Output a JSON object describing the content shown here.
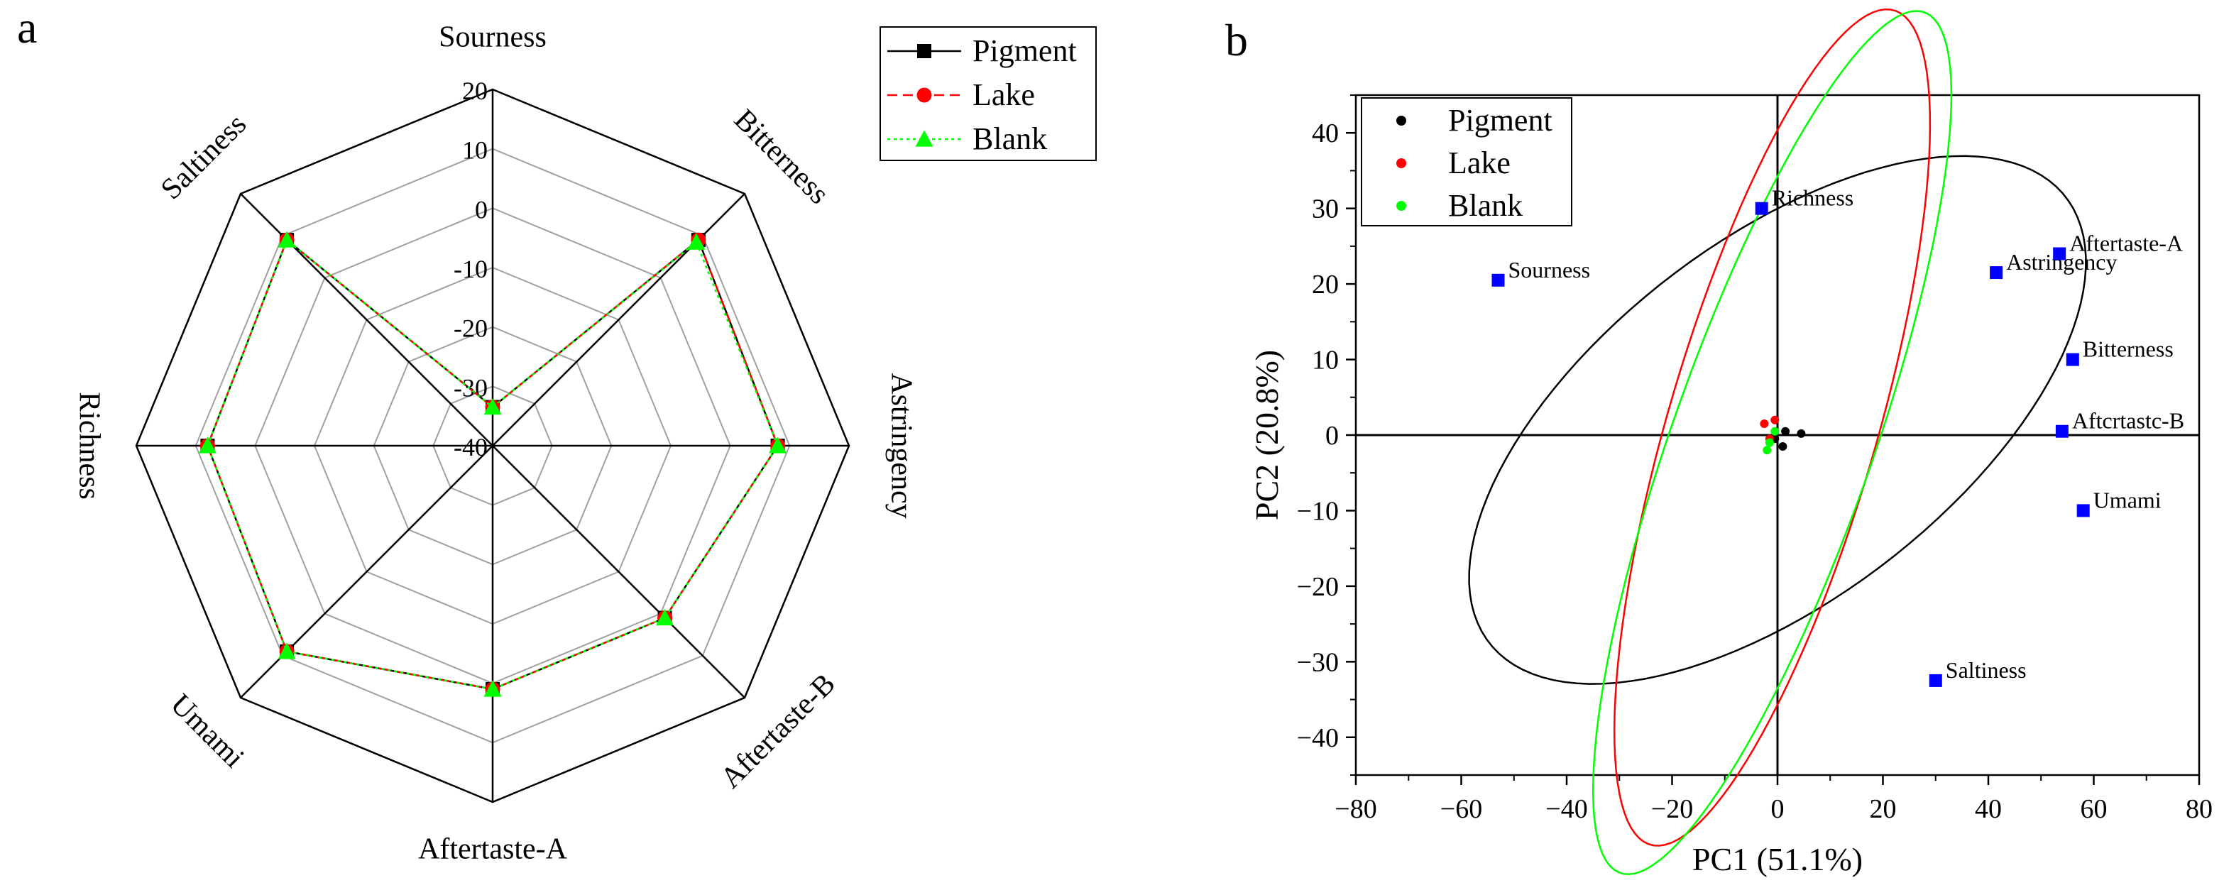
{
  "panels": {
    "a": "a",
    "b": "b"
  },
  "colors": {
    "pigment": "#000000",
    "lake": "#ff0000",
    "blank": "#00ff00",
    "loading": "#0000ff",
    "grid": "#a0a0a0"
  },
  "chart_data": [
    {
      "id": "radar",
      "type": "radar",
      "title": "",
      "axes": [
        "Sourness",
        "Bitterness",
        "Astringency",
        "Aftertaste-B",
        "Aftertaste-A",
        "Umami",
        "Richness",
        "Saltiness"
      ],
      "range": [
        -40,
        20
      ],
      "ticks": [
        20,
        10,
        0,
        -10,
        -20,
        -30,
        -40
      ],
      "tick_labels": [
        "20",
        "10",
        "0",
        "-10",
        "-20",
        "-30",
        "-40"
      ],
      "legend": {
        "position": "top-right",
        "labels": [
          "Pigment",
          "Lake",
          "Blank"
        ]
      },
      "series": [
        {
          "name": "Pigment",
          "marker": "square",
          "line": "solid",
          "values": [
            -33.5,
            9,
            8,
            1,
            1,
            9,
            8,
            9
          ]
        },
        {
          "name": "Lake",
          "marker": "circle",
          "line": "dashed",
          "values": [
            -33.5,
            9,
            8,
            1,
            1,
            9,
            8,
            9
          ]
        },
        {
          "name": "Blank",
          "marker": "triangle",
          "line": "dotted",
          "values": [
            -33.5,
            8.5,
            8,
            1,
            1,
            9,
            8,
            9
          ]
        }
      ]
    },
    {
      "id": "pca",
      "type": "scatter",
      "title": "",
      "xlabel": "PC1 (51.1%)",
      "ylabel": "PC2 (20.8%)",
      "xlim": [
        -80,
        80
      ],
      "ylim": [
        -45,
        45
      ],
      "xticks": [
        -80,
        -60,
        -40,
        -20,
        0,
        20,
        40,
        60,
        80
      ],
      "xtick_labels": [
        "−80",
        "−60",
        "−40",
        "−20",
        "0",
        "20",
        "40",
        "60",
        "80"
      ],
      "yticks": [
        -40,
        -30,
        -20,
        -10,
        0,
        10,
        20,
        30,
        40
      ],
      "ytick_labels": [
        "−40",
        "−30",
        "−20",
        "−10",
        "0",
        "10",
        "20",
        "30",
        "40"
      ],
      "legend": {
        "position": "top-left",
        "labels": [
          "Pigment",
          "Lake",
          "Blank"
        ]
      },
      "series": [
        {
          "name": "Pigment",
          "x": [
            4.5,
            1.5,
            1.0,
            -0.5
          ],
          "y": [
            0.2,
            0.5,
            -1.5,
            -0.5
          ]
        },
        {
          "name": "Lake",
          "x": [
            -2.5,
            -0.5,
            -1.5
          ],
          "y": [
            1.5,
            2.0,
            -0.5
          ]
        },
        {
          "name": "Blank",
          "x": [
            -0.5,
            -1.5,
            -2.0
          ],
          "y": [
            0.5,
            -1.0,
            -2.0
          ]
        }
      ],
      "loadings": [
        {
          "name": "Sourness",
          "label": "Sourness",
          "x": -53,
          "y": 20.5
        },
        {
          "name": "Richness",
          "label": "Richness",
          "x": -3,
          "y": 30
        },
        {
          "name": "Astringency",
          "label": "Astringency",
          "x": 41.5,
          "y": 21.5
        },
        {
          "name": "Aftertaste-A",
          "label": "Aftertaste-A",
          "x": 53.5,
          "y": 24
        },
        {
          "name": "Bitterness",
          "label": "Bitterness",
          "x": 56,
          "y": 10
        },
        {
          "name": "Aftertaste-B",
          "label": "Aftcrtastc-B",
          "x": 54,
          "y": 0.5
        },
        {
          "name": "Umami",
          "label": "Umami",
          "x": 58,
          "y": -10
        },
        {
          "name": "Saltiness",
          "label": "Saltiness",
          "x": 30,
          "y": -32.5
        }
      ],
      "ellipses": [
        {
          "name": "Pigment",
          "cx": 0,
          "cy": 2,
          "rx": 63,
          "ry": 26,
          "angle_deg": 24
        },
        {
          "name": "Lake",
          "cx": -1,
          "cy": 1,
          "rx": 60,
          "ry": 19,
          "angle_deg": 66
        },
        {
          "name": "Blank",
          "cx": -1,
          "cy": -1,
          "rx": 64,
          "ry": 18,
          "angle_deg": 62
        }
      ]
    }
  ]
}
